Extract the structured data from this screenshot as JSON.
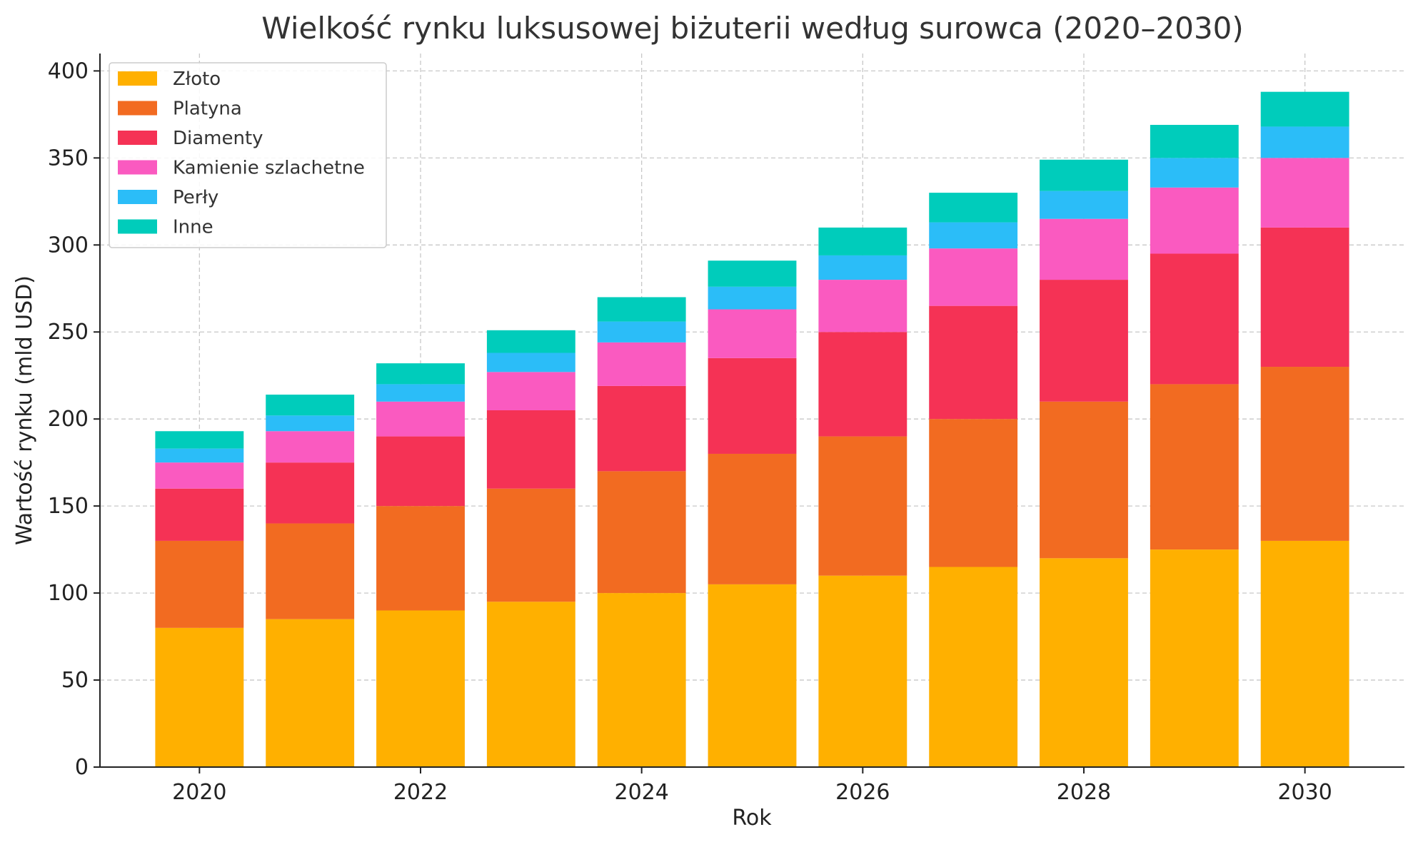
{
  "chart_data": {
    "type": "bar",
    "stacked": true,
    "title": "Wielkość rynku luksusowej biżuterii według surowca (2020–2030)",
    "xlabel": "Rok",
    "ylabel": "Wartość rynku (mld USD)",
    "ylim": [
      0,
      410
    ],
    "xlim": [
      2019.1,
      2030.9
    ],
    "yticks": [
      0,
      50,
      100,
      150,
      200,
      250,
      300,
      350,
      400
    ],
    "xticks": [
      2020,
      2022,
      2024,
      2026,
      2028,
      2030
    ],
    "grid": true,
    "legend_position": "top-left",
    "categories": [
      2020,
      2021,
      2022,
      2023,
      2024,
      2025,
      2026,
      2027,
      2028,
      2029,
      2030
    ],
    "series": [
      {
        "name": "Złoto",
        "color": "#FFB000",
        "values": [
          80,
          85,
          90,
          95,
          100,
          105,
          110,
          115,
          120,
          125,
          130
        ]
      },
      {
        "name": "Platyna",
        "color": "#F26B21",
        "values": [
          50,
          55,
          60,
          65,
          70,
          75,
          80,
          85,
          90,
          95,
          100
        ]
      },
      {
        "name": "Diamenty",
        "color": "#F53255",
        "values": [
          30,
          35,
          40,
          45,
          49,
          55,
          60,
          65,
          70,
          75,
          80
        ]
      },
      {
        "name": "Kamienie szlachetne",
        "color": "#FA5AC0",
        "values": [
          15,
          18,
          20,
          22,
          25,
          28,
          30,
          33,
          35,
          38,
          40
        ]
      },
      {
        "name": "Perły",
        "color": "#2BBDF8",
        "values": [
          8,
          9,
          10,
          11,
          12,
          13,
          14,
          15,
          16,
          17,
          18
        ]
      },
      {
        "name": "Inne",
        "color": "#00CCBB",
        "values": [
          10,
          12,
          12,
          13,
          14,
          15,
          16,
          17,
          18,
          19,
          20
        ]
      }
    ]
  }
}
